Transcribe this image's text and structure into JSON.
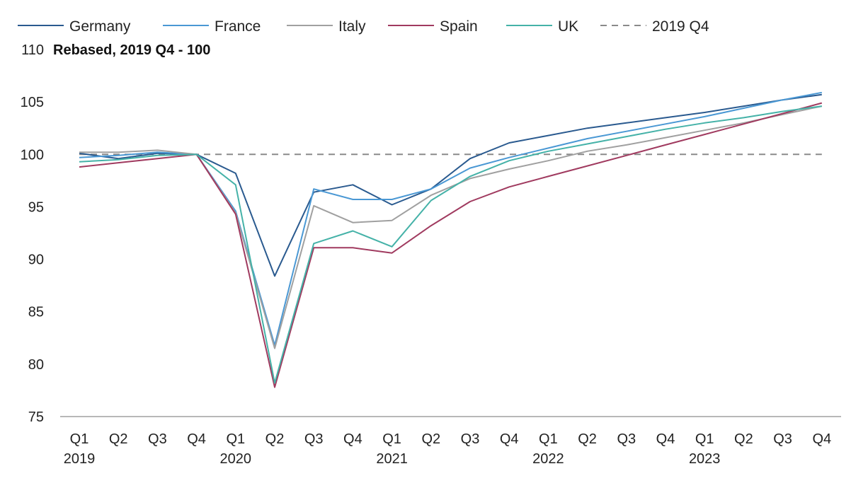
{
  "chart_data": {
    "type": "line",
    "ylabel": "Rebased, 2019 Q4 - 100",
    "ylim": [
      75,
      110
    ],
    "yticks": [
      75,
      80,
      85,
      90,
      95,
      100,
      105,
      110
    ],
    "grid": false,
    "legend_position": "top",
    "x": [
      "Q1",
      "Q2",
      "Q3",
      "Q4",
      "Q1",
      "Q2",
      "Q3",
      "Q4",
      "Q1",
      "Q2",
      "Q3",
      "Q4",
      "Q1",
      "Q2",
      "Q3",
      "Q4",
      "Q1",
      "Q2",
      "Q3",
      "Q4"
    ],
    "x_groups": [
      {
        "label": "2019",
        "start": 0
      },
      {
        "label": "2020",
        "start": 4
      },
      {
        "label": "2021",
        "start": 8
      },
      {
        "label": "2022",
        "start": 12
      },
      {
        "label": "2023",
        "start": 16
      }
    ],
    "series": [
      {
        "name": "Germany",
        "color": "#2a5a8f",
        "values": [
          100.1,
          99.6,
          100.1,
          100.0,
          98.2,
          88.4,
          96.4,
          97.1,
          95.2,
          96.7,
          99.6,
          101.1,
          101.8,
          102.5,
          103.0,
          103.5,
          104.0,
          104.6,
          105.2,
          105.7
        ]
      },
      {
        "name": "France",
        "color": "#4a98d4",
        "values": [
          99.7,
          99.9,
          100.2,
          100.0,
          94.6,
          81.8,
          96.7,
          95.7,
          95.7,
          96.7,
          98.7,
          99.7,
          100.6,
          101.5,
          102.2,
          102.9,
          103.6,
          104.4,
          105.2,
          105.9
        ]
      },
      {
        "name": "Italy",
        "color": "#a0a0a0",
        "values": [
          100.2,
          100.2,
          100.4,
          100.0,
          94.4,
          81.5,
          95.1,
          93.5,
          93.7,
          96.1,
          97.7,
          98.6,
          99.4,
          100.3,
          100.9,
          101.6,
          102.3,
          103.0,
          103.8,
          104.6
        ]
      },
      {
        "name": "Spain",
        "color": "#a03a5f",
        "values": [
          98.8,
          99.2,
          99.6,
          100.0,
          94.3,
          77.8,
          91.1,
          91.1,
          90.6,
          93.2,
          95.5,
          96.9,
          97.9,
          98.9,
          99.9,
          100.9,
          101.9,
          102.9,
          103.9,
          104.9
        ]
      },
      {
        "name": "UK",
        "color": "#45b2a8",
        "values": [
          99.3,
          99.5,
          99.9,
          100.0,
          97.1,
          78.2,
          91.5,
          92.7,
          91.2,
          95.6,
          97.9,
          99.4,
          100.3,
          101.0,
          101.7,
          102.4,
          103.0,
          103.5,
          104.1,
          104.6
        ]
      },
      {
        "name": "2019 Q4",
        "color": "#8a8a8a",
        "dashed": true,
        "values": [
          100,
          100,
          100,
          100,
          100,
          100,
          100,
          100,
          100,
          100,
          100,
          100,
          100,
          100,
          100,
          100,
          100,
          100,
          100,
          100
        ]
      }
    ]
  }
}
